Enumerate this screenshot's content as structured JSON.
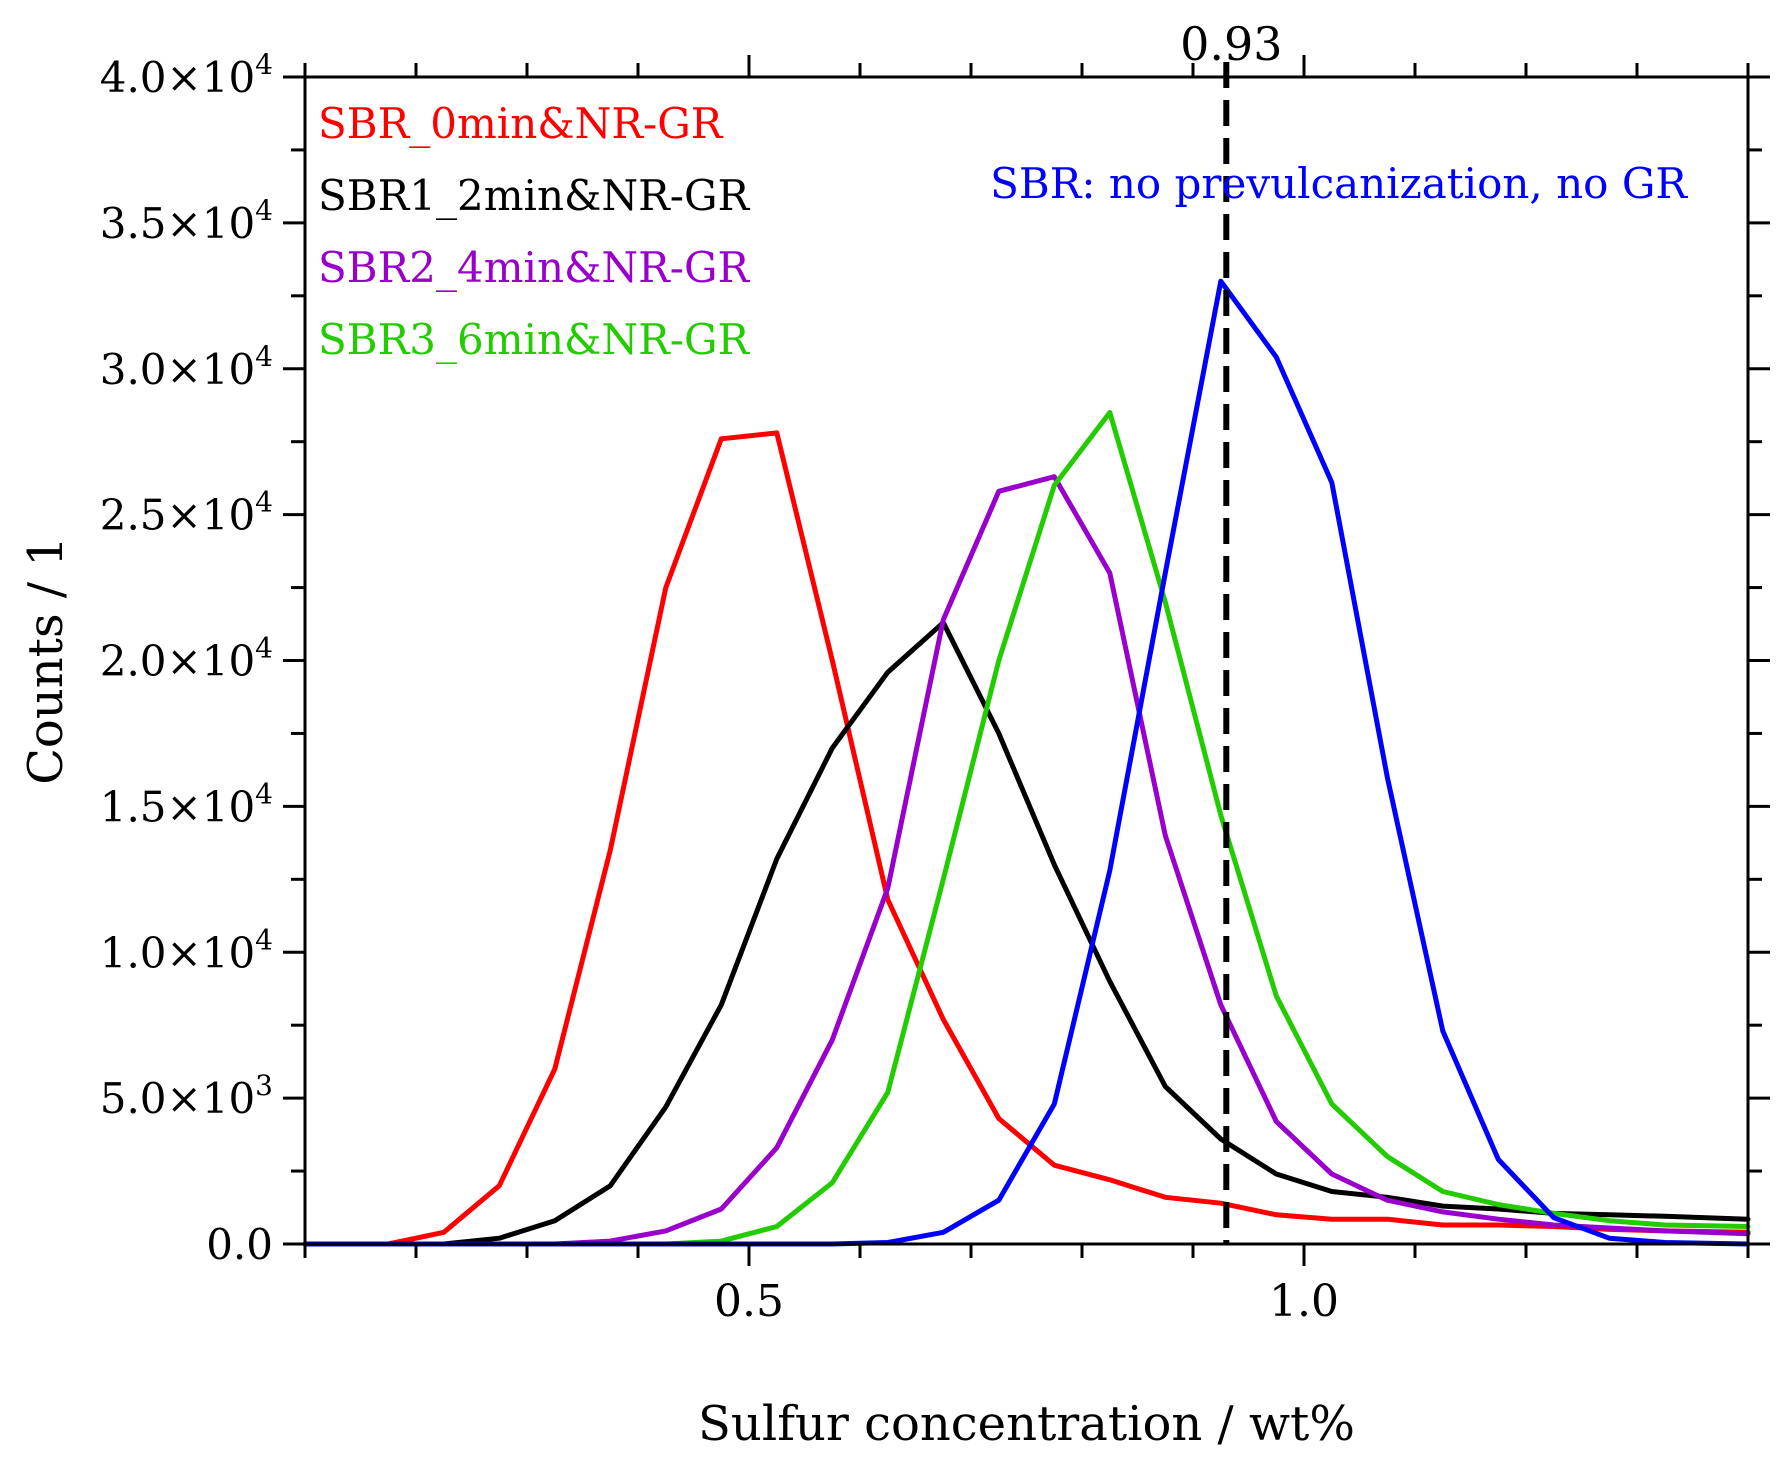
{
  "chart_data": {
    "type": "line",
    "xlabel": "Sulfur concentration / wt%",
    "ylabel": "Counts / 1",
    "xlim": [
      0.1,
      1.4
    ],
    "ylim": [
      0,
      40000
    ],
    "x_ticks": [
      {
        "value": 0.5,
        "label": "0.5"
      },
      {
        "value": 1.0,
        "label": "1.0"
      }
    ],
    "y_ticks": [
      {
        "value": 0,
        "mant": "0.0",
        "exp": ""
      },
      {
        "value": 5000,
        "mant": "5.0×10",
        "exp": "3"
      },
      {
        "value": 10000,
        "mant": "1.0×10",
        "exp": "4"
      },
      {
        "value": 15000,
        "mant": "1.5×10",
        "exp": "4"
      },
      {
        "value": 20000,
        "mant": "2.0×10",
        "exp": "4"
      },
      {
        "value": 25000,
        "mant": "2.5×10",
        "exp": "4"
      },
      {
        "value": 30000,
        "mant": "3.0×10",
        "exp": "4"
      },
      {
        "value": 35000,
        "mant": "3.5×10",
        "exp": "4"
      },
      {
        "value": 40000,
        "mant": "4.0×10",
        "exp": "4"
      }
    ],
    "reference_line": {
      "x": 0.93,
      "label": "0.93",
      "style": "dashed",
      "color": "#000000"
    },
    "series": [
      {
        "name": "SBR_0min&NR-GR",
        "color": "#ff0000",
        "x": [
          0.1,
          0.175,
          0.225,
          0.275,
          0.325,
          0.375,
          0.425,
          0.475,
          0.525,
          0.575,
          0.625,
          0.675,
          0.725,
          0.775,
          0.825,
          0.875,
          0.925,
          0.975,
          1.025,
          1.075,
          1.125,
          1.175,
          1.225,
          1.275,
          1.325,
          1.4
        ],
        "y": [
          0,
          0,
          400,
          2000,
          6000,
          13500,
          22500,
          27600,
          27800,
          20000,
          11800,
          7700,
          4300,
          2700,
          2200,
          1600,
          1400,
          1000,
          850,
          850,
          650,
          650,
          600,
          500,
          450,
          400
        ]
      },
      {
        "name": "SBR1_2min&NR-GR",
        "color": "#000000",
        "x": [
          0.1,
          0.175,
          0.225,
          0.275,
          0.325,
          0.375,
          0.425,
          0.475,
          0.525,
          0.575,
          0.625,
          0.675,
          0.725,
          0.775,
          0.825,
          0.875,
          0.925,
          0.975,
          1.025,
          1.075,
          1.125,
          1.175,
          1.225,
          1.275,
          1.325,
          1.4
        ],
        "y": [
          0,
          0,
          0,
          200,
          800,
          2000,
          4700,
          8200,
          13200,
          17000,
          19600,
          21300,
          17500,
          13000,
          9000,
          5400,
          3600,
          2400,
          1800,
          1600,
          1300,
          1200,
          1050,
          1000,
          950,
          850
        ]
      },
      {
        "name": "SBR2_4min&NR-GR",
        "color": "#9900cc",
        "x": [
          0.1,
          0.175,
          0.225,
          0.275,
          0.325,
          0.375,
          0.425,
          0.475,
          0.525,
          0.575,
          0.625,
          0.675,
          0.725,
          0.775,
          0.825,
          0.875,
          0.925,
          0.975,
          1.025,
          1.075,
          1.125,
          1.175,
          1.225,
          1.275,
          1.325,
          1.4
        ],
        "y": [
          0,
          0,
          0,
          0,
          0,
          100,
          450,
          1200,
          3300,
          7000,
          12200,
          21400,
          25800,
          26300,
          23000,
          14000,
          8200,
          4200,
          2400,
          1500,
          1100,
          850,
          650,
          550,
          450,
          350
        ]
      },
      {
        "name": "SBR3_6min&NR-GR",
        "color": "#22cc00",
        "x": [
          0.1,
          0.175,
          0.225,
          0.275,
          0.325,
          0.375,
          0.425,
          0.475,
          0.525,
          0.575,
          0.625,
          0.675,
          0.725,
          0.775,
          0.825,
          0.875,
          0.925,
          0.975,
          1.025,
          1.075,
          1.125,
          1.175,
          1.225,
          1.275,
          1.325,
          1.4
        ],
        "y": [
          0,
          0,
          0,
          0,
          0,
          0,
          0,
          100,
          600,
          2100,
          5200,
          12500,
          20000,
          26000,
          28500,
          22000,
          14700,
          8500,
          4800,
          3000,
          1800,
          1350,
          1050,
          800,
          650,
          600
        ]
      },
      {
        "name": "SBR: no prevulcanization, no GR",
        "color": "#0000ff",
        "x": [
          0.1,
          0.175,
          0.225,
          0.275,
          0.325,
          0.375,
          0.425,
          0.475,
          0.525,
          0.575,
          0.625,
          0.675,
          0.725,
          0.775,
          0.825,
          0.875,
          0.925,
          0.975,
          1.025,
          1.075,
          1.125,
          1.175,
          1.225,
          1.275,
          1.325,
          1.4
        ],
        "y": [
          0,
          0,
          0,
          0,
          0,
          0,
          0,
          0,
          0,
          0,
          50,
          400,
          1500,
          4800,
          12800,
          23000,
          33000,
          30400,
          26100,
          16000,
          7300,
          2900,
          900,
          200,
          50,
          0
        ]
      }
    ]
  },
  "colors": {
    "axis": "#000000",
    "background": "#ffffff"
  }
}
